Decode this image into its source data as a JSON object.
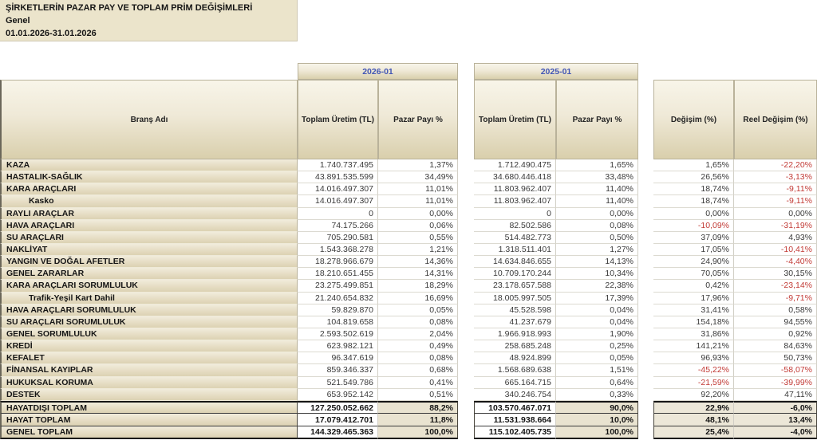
{
  "title": {
    "line1": "ŞİRKETLERİN PAZAR PAY VE TOPLAM PRİM DEĞİŞİMLERİ",
    "line2": "Genel",
    "line3": "01.01.2026-31.01.2026"
  },
  "column_groups": {
    "period_2026": "2026-01",
    "period_2025": "2025-01"
  },
  "columns": {
    "brans": "Branş Adı",
    "toplam_uretim_2026": "Toplam Üretim (TL)",
    "pazar_payi_2026": "Pazar Payı %",
    "toplam_uretim_2025": "Toplam Üretim (TL)",
    "pazar_payi_2025": "Pazar Payı %",
    "degisim": "Değişim (%)",
    "reel_degisim": "Reel Değişim (%)"
  },
  "colors": {
    "accent_blue": "#4256b4",
    "negative_red": "#c23b36",
    "header_beige_light": "#f8f5e9",
    "header_beige_dark": "#d9cfac",
    "title_beige": "#ebe4cb"
  },
  "rows": [
    {
      "name": "KAZA",
      "indent": false,
      "values": [
        "1.740.737.495",
        "1,37%",
        "1.712.490.475",
        "1,65%",
        "1,65%",
        "-22,20%"
      ]
    },
    {
      "name": "HASTALIK-SAĞLIK",
      "indent": false,
      "values": [
        "43.891.535.599",
        "34,49%",
        "34.680.446.418",
        "33,48%",
        "26,56%",
        "-3,13%"
      ]
    },
    {
      "name": "KARA ARAÇLARI",
      "indent": false,
      "values": [
        "14.016.497.307",
        "11,01%",
        "11.803.962.407",
        "11,40%",
        "18,74%",
        "-9,11%"
      ]
    },
    {
      "name": "Kasko",
      "indent": true,
      "values": [
        "14.016.497.307",
        "11,01%",
        "11.803.962.407",
        "11,40%",
        "18,74%",
        "-9,11%"
      ]
    },
    {
      "name": "RAYLI ARAÇLAR",
      "indent": false,
      "values": [
        "0",
        "0,00%",
        "0",
        "0,00%",
        "0,00%",
        "0,00%"
      ]
    },
    {
      "name": "HAVA ARAÇLARI",
      "indent": false,
      "values": [
        "74.175.266",
        "0,06%",
        "82.502.586",
        "0,08%",
        "-10,09%",
        "-31,19%"
      ]
    },
    {
      "name": "SU ARAÇLARI",
      "indent": false,
      "values": [
        "705.290.581",
        "0,55%",
        "514.482.773",
        "0,50%",
        "37,09%",
        "4,93%"
      ]
    },
    {
      "name": "NAKLİYAT",
      "indent": false,
      "values": [
        "1.543.368.278",
        "1,21%",
        "1.318.511.401",
        "1,27%",
        "17,05%",
        "-10,41%"
      ]
    },
    {
      "name": "YANGIN VE DOĞAL AFETLER",
      "indent": false,
      "values": [
        "18.278.966.679",
        "14,36%",
        "14.634.846.655",
        "14,13%",
        "24,90%",
        "-4,40%"
      ]
    },
    {
      "name": "GENEL ZARARLAR",
      "indent": false,
      "values": [
        "18.210.651.455",
        "14,31%",
        "10.709.170.244",
        "10,34%",
        "70,05%",
        "30,15%"
      ]
    },
    {
      "name": "KARA ARAÇLARI SORUMLULUK",
      "indent": false,
      "values": [
        "23.275.499.851",
        "18,29%",
        "23.178.657.588",
        "22,38%",
        "0,42%",
        "-23,14%"
      ]
    },
    {
      "name": "Trafik-Yeşil Kart Dahil",
      "indent": true,
      "values": [
        "21.240.654.832",
        "16,69%",
        "18.005.997.505",
        "17,39%",
        "17,96%",
        "-9,71%"
      ]
    },
    {
      "name": "HAVA ARAÇLARI SORUMLULUK",
      "indent": false,
      "values": [
        "59.829.870",
        "0,05%",
        "45.528.598",
        "0,04%",
        "31,41%",
        "0,58%"
      ]
    },
    {
      "name": "SU ARAÇLARI SORUMLULUK",
      "indent": false,
      "values": [
        "104.819.658",
        "0,08%",
        "41.237.679",
        "0,04%",
        "154,18%",
        "94,55%"
      ]
    },
    {
      "name": "GENEL SORUMLULUK",
      "indent": false,
      "values": [
        "2.593.502.619",
        "2,04%",
        "1.966.918.993",
        "1,90%",
        "31,86%",
        "0,92%"
      ]
    },
    {
      "name": "KREDİ",
      "indent": false,
      "values": [
        "623.982.121",
        "0,49%",
        "258.685.248",
        "0,25%",
        "141,21%",
        "84,63%"
      ]
    },
    {
      "name": "KEFALET",
      "indent": false,
      "values": [
        "96.347.619",
        "0,08%",
        "48.924.899",
        "0,05%",
        "96,93%",
        "50,73%"
      ]
    },
    {
      "name": "FİNANSAL KAYIPLAR",
      "indent": false,
      "values": [
        "859.346.337",
        "0,68%",
        "1.568.689.638",
        "1,51%",
        "-45,22%",
        "-58,07%"
      ]
    },
    {
      "name": "HUKUKSAL KORUMA",
      "indent": false,
      "values": [
        "521.549.786",
        "0,41%",
        "665.164.715",
        "0,64%",
        "-21,59%",
        "-39,99%"
      ]
    },
    {
      "name": "DESTEK",
      "indent": false,
      "values": [
        "653.952.142",
        "0,51%",
        "340.246.754",
        "0,33%",
        "92,20%",
        "47,11%"
      ]
    }
  ],
  "totals": [
    {
      "name": "HAYATDIŞI TOPLAM",
      "values": [
        "127.250.052.662",
        "88,2%",
        "103.570.467.071",
        "90,0%",
        "22,9%",
        "-6,0%"
      ]
    },
    {
      "name": "HAYAT TOPLAM",
      "values": [
        "17.079.412.701",
        "11,8%",
        "11.531.938.664",
        "10,0%",
        "48,1%",
        "13,4%"
      ]
    },
    {
      "name": "GENEL TOPLAM",
      "values": [
        "144.329.465.363",
        "100,0%",
        "115.102.405.735",
        "100,0%",
        "25,4%",
        "-4,0%"
      ]
    }
  ]
}
